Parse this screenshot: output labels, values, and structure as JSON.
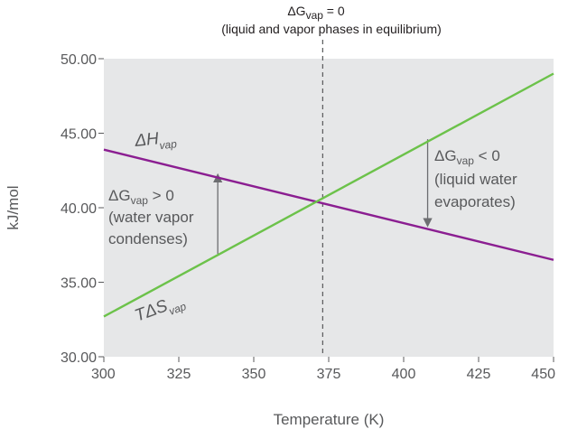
{
  "colors": {
    "plot_bg": "#e6e7e8",
    "enthalpy": "#8b1e91",
    "entropy": "#6cc24a",
    "axis": "#58595b",
    "dashed": "#58595b",
    "arrow": "#6d6e71"
  },
  "chart_data": {
    "type": "line",
    "x": [
      300,
      450
    ],
    "series": [
      {
        "name_parts": {
          "prefix": "",
          "symbol": "ΔH",
          "subscript": "vap"
        },
        "values": [
          43.9,
          36.5
        ],
        "color": "#8b1e91"
      },
      {
        "name_parts": {
          "prefix": "T",
          "symbol": "ΔS",
          "subscript": "vap"
        },
        "values": [
          32.7,
          49.0
        ],
        "color": "#6cc24a"
      }
    ],
    "xlabel": "Temperature (K)",
    "ylabel": "kJ/mol",
    "xlim": [
      300,
      450
    ],
    "ylim": [
      30,
      50
    ],
    "xticks": [
      "300",
      "325",
      "350",
      "375",
      "400",
      "425",
      "450"
    ],
    "yticks": [
      "30.00",
      "35.00",
      "40.00",
      "45.00",
      "50.00"
    ],
    "grid": false,
    "equilibrium": {
      "x": 373,
      "line1": {
        "symbol": "ΔG",
        "subscript": "vap",
        "rest": " = 0"
      },
      "line2": "(liquid and vapor phases in equilibrium)"
    },
    "annotations": {
      "left": {
        "line1": {
          "symbol": "ΔG",
          "subscript": "vap",
          "rest": " > 0"
        },
        "line2": "(water vapor",
        "line3": "condenses)",
        "arrow_x": 338,
        "arrow_from_y": 36.9,
        "arrow_to_y": 42.0
      },
      "right": {
        "line1": {
          "symbol": "ΔG",
          "subscript": "vap",
          "rest": " < 0"
        },
        "line2": "(liquid water",
        "line3": "evaporates)",
        "arrow_x": 408,
        "arrow_from_y": 44.6,
        "arrow_to_y": 39.0
      }
    }
  }
}
